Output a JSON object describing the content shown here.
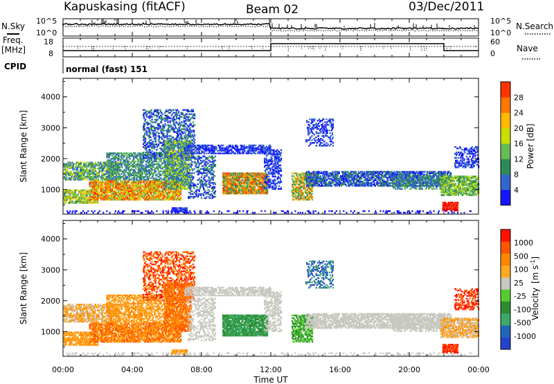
{
  "header": {
    "title": "Kapuskasing (fitACF)",
    "beam": "Beam 02",
    "date": "03/Dec/2011"
  },
  "summary_panels": {
    "nsky_label": "N.Sky",
    "nsky_ticks": [
      "10^5",
      "10^0"
    ],
    "nsearch_label": "N.Search",
    "nsearch_ticks": [
      "10^5",
      "10^0"
    ],
    "freq_label_1": "Freq.",
    "freq_label_2": "[MHz]",
    "freq_ticks": [
      "18",
      "8"
    ],
    "nave_label": "Nave",
    "nave_ticks": [
      "60",
      "0"
    ],
    "cpid_label": "CPID",
    "cpid_text": "normal (fast) 151"
  },
  "colors": {
    "power_scale": [
      "#1616ff",
      "#3366cc",
      "#2e8b57",
      "#66bb55",
      "#ccdd00",
      "#ffbb00",
      "#ff7700",
      "#ff3300",
      "#ee0000"
    ],
    "velocity_scale": [
      "#2244cc",
      "#2266bb",
      "#3aaa66",
      "#2e8b2e",
      "#55cc33",
      "#c8c8c0",
      "#ffaa22",
      "#ff8800",
      "#ff5500",
      "#ff1100"
    ]
  },
  "chart_data": [
    {
      "type": "heatmap",
      "name": "power",
      "ylabel": "Slant Range [km]",
      "yticks": [
        "1000",
        "2000",
        "3000",
        "4000"
      ],
      "ylim": [
        200,
        4600
      ],
      "xlim_hours": [
        0,
        24
      ],
      "colorbar_label": "Power [dB]",
      "colorbar_ticks": [
        "4",
        "8",
        "12",
        "16",
        "20",
        "24",
        "28"
      ],
      "grid": false
    },
    {
      "type": "heatmap",
      "name": "velocity",
      "ylabel": "Slant Range [km]",
      "yticks": [
        "1000",
        "2000",
        "3000",
        "4000"
      ],
      "ylim": [
        200,
        4600
      ],
      "xlim_hours": [
        0,
        24
      ],
      "xlabel": "Time UT",
      "xticks": [
        "00:00",
        "04:00",
        "08:00",
        "12:00",
        "16:00",
        "20:00",
        "00:00"
      ],
      "colorbar_label_main": "Velocity",
      "colorbar_label_unit": "[m s",
      "colorbar_label_exp": "-1",
      "colorbar_label_close": "]",
      "colorbar_ticks": [
        "1000",
        "500",
        "100",
        "25",
        "-25",
        "-100",
        "-500",
        "-1000"
      ],
      "grid": false
    }
  ]
}
